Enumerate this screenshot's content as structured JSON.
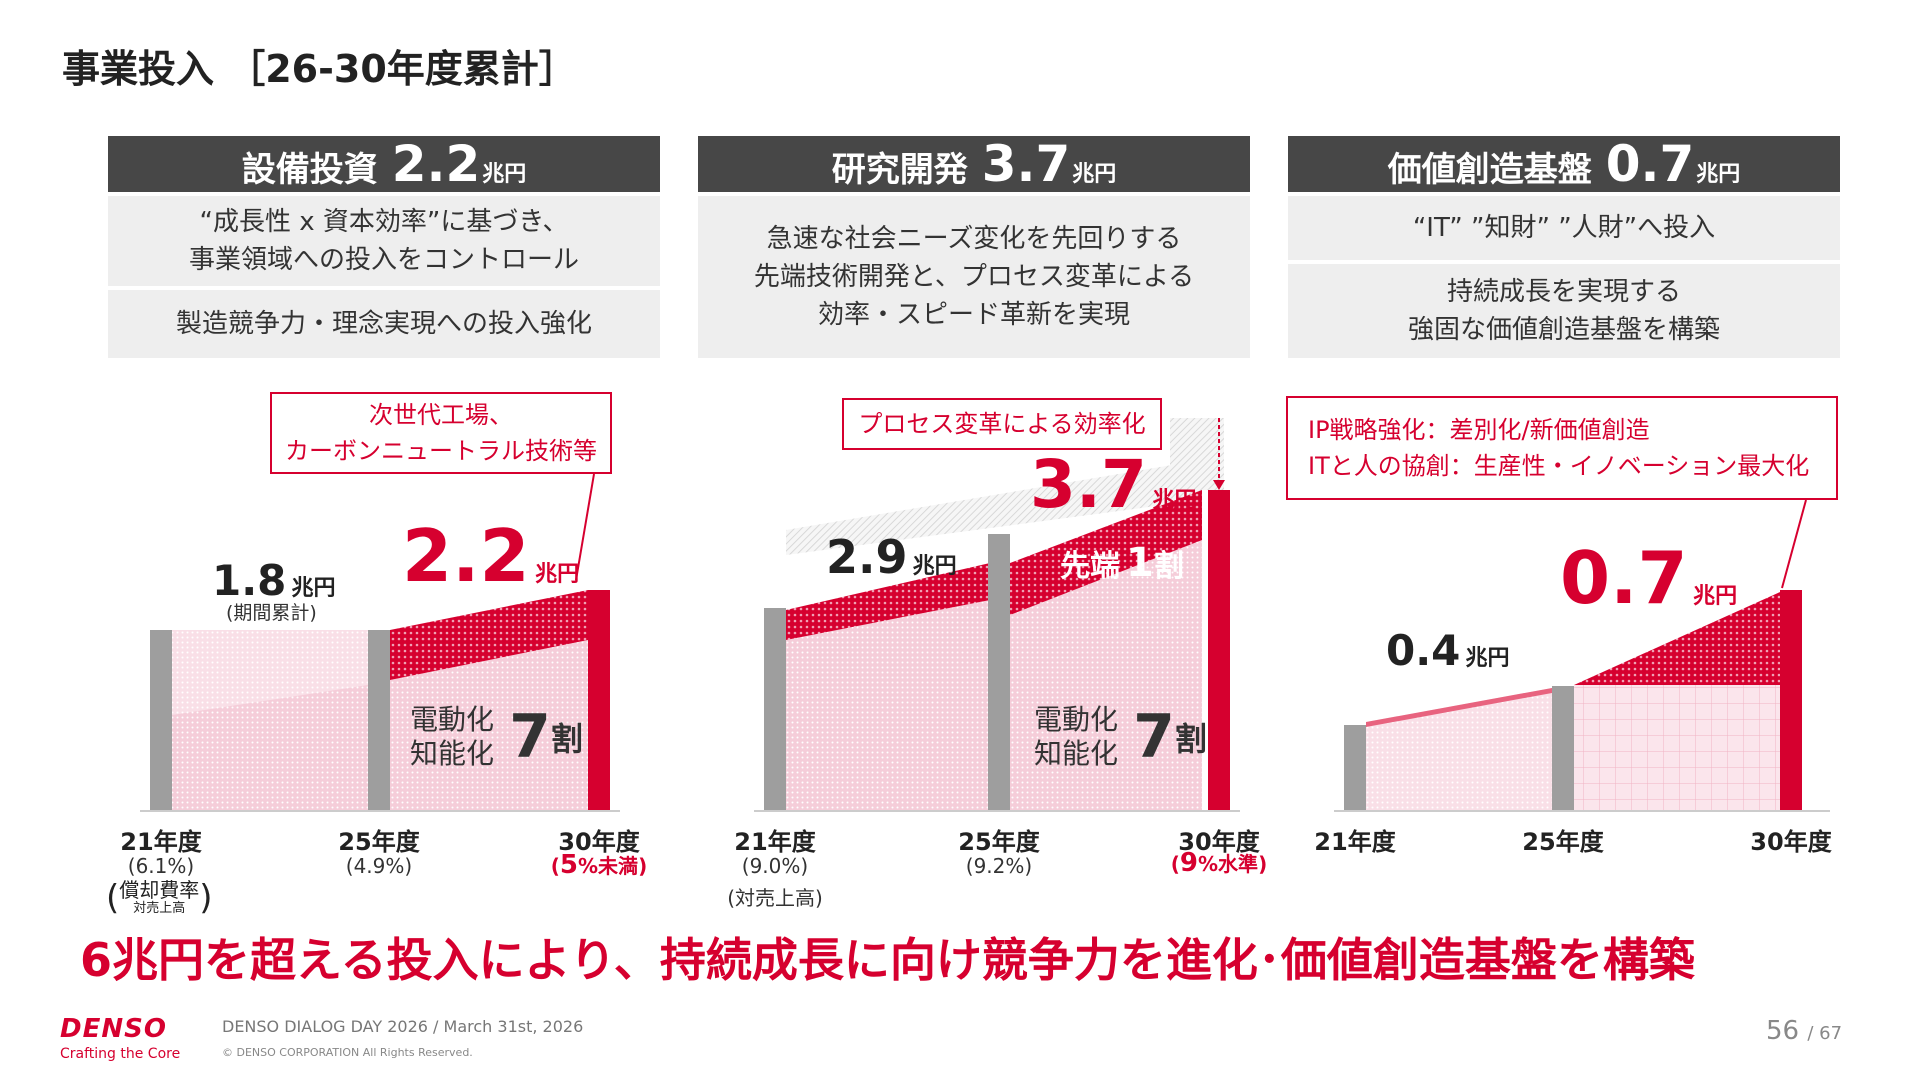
{
  "title": "事業投入 ［26-30年度累計］",
  "panels": [
    {
      "name": "設備投資",
      "amount": "2.2",
      "unit": "兆円",
      "box1": [
        "“成長性 x 資本効率”に基づき、",
        "事業領域への投入をコントロール"
      ],
      "box2": [
        "製造競争力・理念実現への投入強化"
      ],
      "callout": [
        "次世代工場、",
        "カーボンニュートラル技術等"
      ]
    },
    {
      "name": "研究開発",
      "amount": "3.7",
      "unit": "兆円",
      "box1": [
        "急速な社会ニーズ変化を先回りする",
        "先端技術開発と、プロセス変革による",
        "効率・スピード革新を実現"
      ],
      "callout": [
        "プロセス変革による効率化"
      ]
    },
    {
      "name": "価値創造基盤",
      "amount": "0.7",
      "unit": "兆円",
      "box1": [
        "“IT” ”知財” ”人財”へ投入"
      ],
      "box2": [
        "持続成長を実現する",
        "強固な価値創造基盤を構築"
      ],
      "callout": [
        "IP戦略強化：差別化/新価値創造",
        "ITと人の協創：生産性・イノベーション最大化"
      ]
    }
  ],
  "charts": {
    "capex": {
      "prev_value": "1.8",
      "prev_unit": "兆円",
      "prev_note": "(期間累計)",
      "new_value": "2.2",
      "new_unit": "兆円",
      "inner_line1": "電動化",
      "inner_line2": "知能化",
      "inner_big": "7",
      "inner_small": "割",
      "x": [
        {
          "year": "21年度",
          "sub": "(6.1%)"
        },
        {
          "year": "25年度",
          "sub": "(4.9%)"
        },
        {
          "year": "30年度",
          "sub_big": "5",
          "sub_small": "%未満"
        }
      ],
      "note_main": "償却費率",
      "note_sub": "対売上高"
    },
    "rd": {
      "prev_value": "2.9",
      "prev_unit": "兆円",
      "new_value": "3.7",
      "new_unit": "兆円",
      "adv_word": "先端",
      "adv_big": "1",
      "adv_small": "割",
      "inner_line1": "電動化",
      "inner_line2": "知能化",
      "inner_big": "7",
      "inner_small": "割",
      "x": [
        {
          "year": "21年度",
          "sub": "(9.0%)"
        },
        {
          "year": "25年度",
          "sub": "(9.2%)"
        },
        {
          "year": "30年度",
          "sub_big": "9",
          "sub_small": "%水準"
        }
      ],
      "note_sub": "(対売上高)"
    },
    "vcb": {
      "prev_value": "0.4",
      "prev_unit": "兆円",
      "new_value": "0.7",
      "new_unit": "兆円",
      "x": [
        {
          "year": "21年度"
        },
        {
          "year": "25年度"
        },
        {
          "year": "30年度"
        }
      ]
    }
  },
  "chart_data": [
    {
      "type": "bar",
      "categories": [
        "21年度",
        "25年度",
        "30年度"
      ],
      "series_label": "設備投資",
      "values": [
        1.8,
        1.8,
        2.2
      ],
      "ylabel": "兆円",
      "extra": {
        "ratio_labels": [
          "(6.1%)",
          "(4.9%)",
          "(5%未満)"
        ]
      }
    },
    {
      "type": "bar",
      "categories": [
        "21年度",
        "25年度",
        "30年度"
      ],
      "series_label": "研究開発",
      "values": [
        2.4,
        2.9,
        3.7
      ],
      "ylabel": "兆円",
      "extra": {
        "ratio_labels": [
          "(9.0%)",
          "(9.2%)",
          "(9%水準)"
        ]
      }
    },
    {
      "type": "bar",
      "categories": [
        "21年度",
        "25年度",
        "30年度"
      ],
      "series_label": "価値創造基盤",
      "values": [
        0.3,
        0.4,
        0.7
      ],
      "ylabel": "兆円"
    }
  ],
  "conclusion": "6兆円を超える投入により、持続成長に向け競争力を進化･価値創造基盤を構築",
  "footer": {
    "logo": "DENSO",
    "tagline": "Crafting the Core",
    "event": "DENSO DIALOG DAY 2026 / March 31st, 2026",
    "copyright": "© DENSO CORPORATION All Rights Reserved.",
    "page": "56",
    "total": "/ 67"
  },
  "colors": {
    "accent": "#d6002f",
    "header": "#474747",
    "box": "#eeeeee",
    "bar_gray": "#9e9e9e",
    "fill_pink": "#f2c2d0",
    "fill_light": "#f8dde5"
  }
}
